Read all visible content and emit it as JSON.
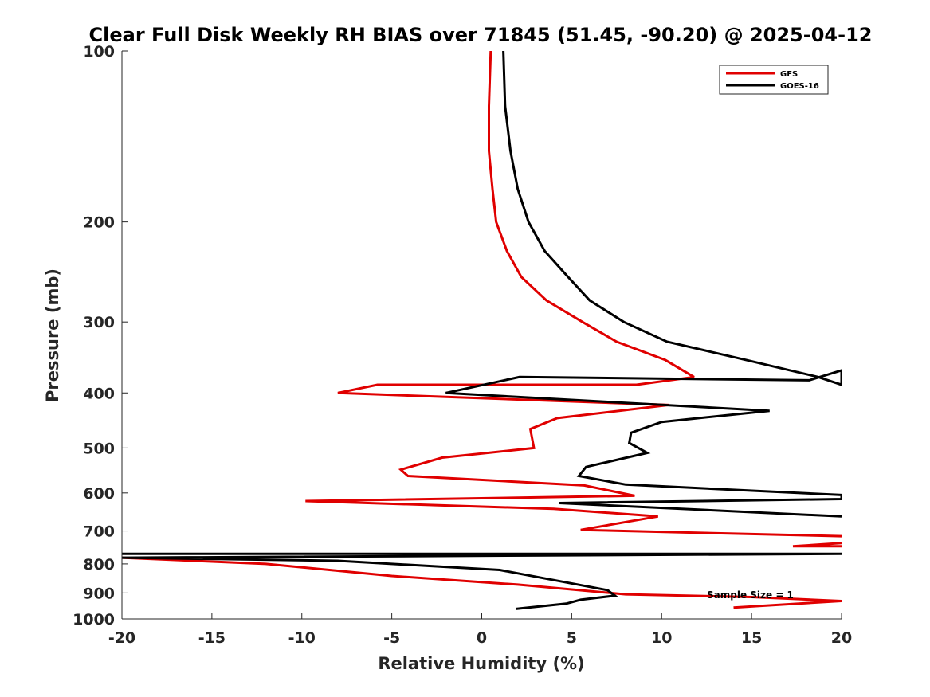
{
  "chart_data": {
    "type": "line",
    "title": "Clear Full Disk Weekly RH BIAS over 71845 (51.45, -90.20) @ 2025-04-12",
    "xlabel": "Relative Humidity (%)",
    "ylabel": "Pressure (mb)",
    "xlim": [
      -20,
      20
    ],
    "ylim": [
      100,
      1000
    ],
    "yscale": "log",
    "y_reversed": true,
    "xticks": [
      -20,
      -15,
      -10,
      -5,
      0,
      5,
      10,
      15,
      20
    ],
    "xtick_labels": [
      "-20",
      "-15",
      "-10",
      "-5",
      "0",
      "5",
      "10",
      "15",
      "20"
    ],
    "yticks": [
      100,
      200,
      300,
      400,
      500,
      600,
      700,
      800,
      900,
      1000
    ],
    "ytick_labels": [
      "100",
      "200",
      "300",
      "400",
      "500",
      "600",
      "700",
      "800",
      "900",
      "1000"
    ],
    "grid": false,
    "legend_position": "top-right",
    "annotation": "Sample Size = 1",
    "series": [
      {
        "name": "GFS",
        "color": "#e00000",
        "segments": [
          {
            "x": [
              0.5,
              0.4,
              0.4,
              0.6,
              0.8,
              1.4,
              2.2,
              3.6,
              5.6,
              7.5,
              10.2,
              11.8,
              8.6,
              -5.8,
              -8.0,
              10.4,
              4.2,
              2.7,
              2.9,
              -2.2,
              -4.5,
              -4.1,
              5.7,
              8.5,
              -9.8,
              4.0,
              9.8,
              5.5,
              20.0
            ],
            "y": [
              100,
              125,
              150,
              175,
              200,
              225,
              250,
              275,
              300,
              325,
              350,
              375,
              387,
              387,
              400,
              420,
              443,
              463,
              500,
              520,
              546,
              560,
              582,
              607,
              620,
              640,
              660,
              697,
              715
            ]
          },
          {
            "x": [
              20.0,
              17.3,
              20.0
            ],
            "y": [
              735,
              745,
              745
            ]
          },
          {
            "x": [
              -20.0,
              -12.0,
              -5.0,
              2.0,
              8.0,
              15.0,
              20.0,
              14.0
            ],
            "y": [
              780,
              800,
              840,
              870,
              905,
              915,
              930,
              955
            ]
          }
        ]
      },
      {
        "name": "GOES-16",
        "color": "#000000",
        "segments": [
          {
            "x": [
              1.2,
              1.3,
              1.6,
              2.0,
              2.6,
              3.5,
              4.8,
              6.0,
              7.9,
              10.3,
              14.7,
              18.7,
              20.0,
              20.0,
              18.2,
              2.1,
              -2.0,
              16.0,
              10.0,
              8.3,
              8.2,
              9.2,
              5.8,
              5.4,
              8.0,
              20.0,
              20.0,
              4.3,
              20.0
            ],
            "y": [
              100,
              125,
              150,
              175,
              200,
              225,
              250,
              275,
              300,
              325,
              350,
              375,
              387,
              365,
              380,
              375,
              400,
              430,
              450,
              470,
              490,
              510,
              540,
              560,
              580,
              605,
              615,
              625,
              660
            ]
          },
          {
            "x": [
              20.0,
              -20.0,
              20.0,
              -20.0,
              -8.0,
              1.0,
              4.5,
              7.0,
              7.4,
              5.5,
              4.7,
              1.9
            ],
            "y": [
              768,
              768,
              768,
              780,
              790,
              820,
              860,
              890,
              910,
              925,
              940,
              960
            ]
          }
        ]
      }
    ]
  }
}
